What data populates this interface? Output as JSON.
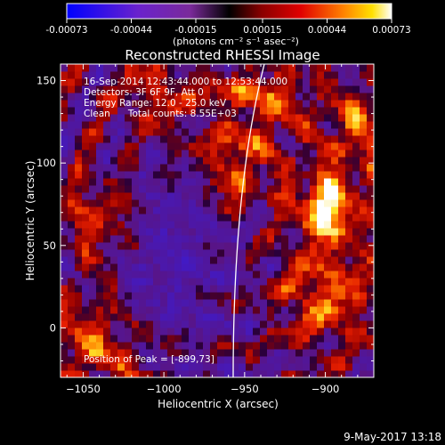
{
  "colorbar": {
    "ticks": [
      "-0.00073",
      "-0.00044",
      "-0.00015",
      "0.00015",
      "0.00044",
      "0.00073"
    ],
    "units": "(photons cm⁻² s⁻¹ asec⁻²)"
  },
  "plot": {
    "title": "Reconstructed RHESSI Image",
    "xlabel": "Heliocentric X (arcsec)",
    "ylabel": "Heliocentric Y (arcsec)",
    "info_lines": [
      "16-Sep-2014 12:43:44.000 to 12:53:44.000",
      "Detectors: 3F 6F 9F, Att 0",
      "Energy Range: 12.0 - 25.0 keV",
      "Clean      Total counts: 8.55E+03"
    ],
    "peak_text": "Position of Peak = [-899,73]"
  },
  "footer": {
    "date": "9-May-2017 13:18"
  },
  "chart_data": {
    "type": "heatmap",
    "title": "Reconstructed RHESSI Image",
    "xlabel": "Heliocentric X (arcsec)",
    "ylabel": "Heliocentric Y (arcsec)",
    "xlim": [
      -1064,
      -870
    ],
    "ylim": [
      -30,
      160
    ],
    "xticks": [
      -1050,
      -1000,
      -950,
      -900
    ],
    "yticks": [
      0,
      50,
      100,
      150
    ],
    "colorbar_range": [
      -0.00073,
      0.00073
    ],
    "peak": [
      -899,
      73
    ],
    "colormap": "hot with negative blue"
  }
}
